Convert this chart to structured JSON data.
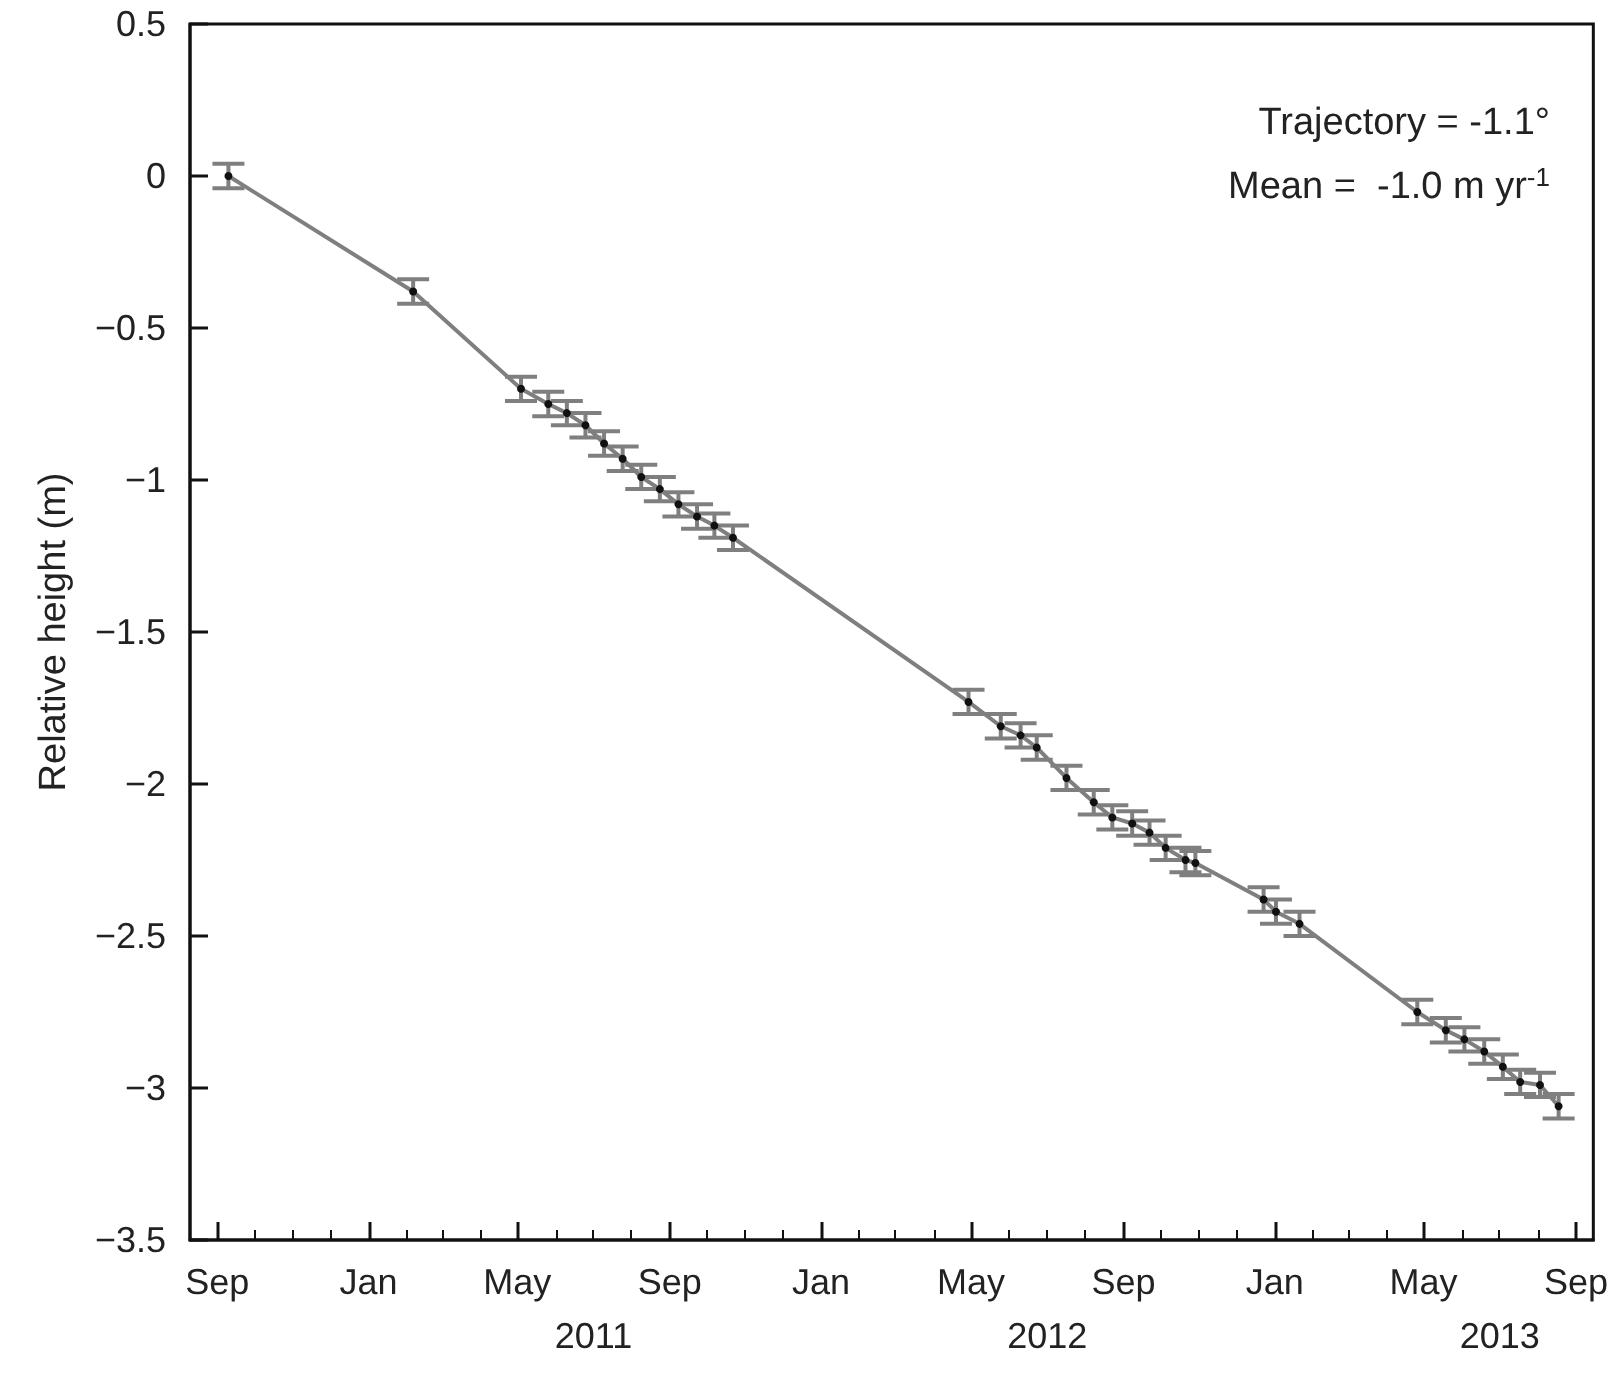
{
  "chart_data": {
    "type": "line",
    "ylabel": "Relative height (m)",
    "annotations": [
      "Trajectory = -1.1°",
      "Mean =  -1.0 m yr$^{-1}$",
      "2011",
      "2012",
      "2013"
    ],
    "x": [
      "2010-09-10",
      "2011-02-06",
      "2011-05-04",
      "2011-05-26",
      "2011-06-10",
      "2011-06-25",
      "2011-07-10",
      "2011-07-25",
      "2011-08-09",
      "2011-08-24",
      "2011-09-08",
      "2011-09-23",
      "2011-10-07",
      "2011-10-22",
      "2012-04-29",
      "2012-05-25",
      "2012-06-10",
      "2012-06-23",
      "2012-07-17",
      "2012-08-08",
      "2012-08-23",
      "2012-09-08",
      "2012-09-22",
      "2012-10-05",
      "2012-10-21",
      "2012-10-29",
      "2012-12-23",
      "2013-01-02",
      "2013-01-21",
      "2013-04-26",
      "2013-05-19",
      "2013-06-03",
      "2013-06-19",
      "2013-07-04",
      "2013-07-18",
      "2013-08-03",
      "2013-08-18"
    ],
    "series": [
      {
        "color": "#7f7f7f",
        "values": [
          0,
          -0.38,
          -0.7,
          -0.75,
          -0.78,
          -0.82,
          -0.88,
          -0.93,
          -0.99,
          -1.03,
          -1.08,
          -1.12,
          -1.15,
          -1.19,
          -1.73,
          -1.81,
          -1.84,
          -1.88,
          -1.98,
          -2.06,
          -2.11,
          -2.13,
          -2.16,
          -2.21,
          -2.25,
          -2.26,
          -2.38,
          -2.42,
          -2.46,
          -2.75,
          -2.81,
          -2.84,
          -2.88,
          -2.93,
          -2.98,
          -2.99,
          -3.06
        ],
        "errors": [
          0.04,
          0.04,
          0.04,
          0.04,
          0.04,
          0.04,
          0.04,
          0.04,
          0.04,
          0.04,
          0.04,
          0.04,
          0.04,
          0.04,
          0.04,
          0.04,
          0.04,
          0.04,
          0.04,
          0.04,
          0.04,
          0.04,
          0.04,
          0.04,
          0.04,
          0.04,
          0.04,
          0.04,
          0.04,
          0.04,
          0.04,
          0.04,
          0.04,
          0.04,
          0.04,
          0.04,
          0.04
        ]
      }
    ],
    "marker": "circle",
    "line_style": "solid",
    "grid": false,
    "legend": false,
    "xlim": [
      "2010-08-10",
      "2013-09-15"
    ],
    "xticks": [
      {
        "value": "2010-09-01",
        "label": "Sep"
      },
      {
        "value": "2010-10-01",
        "label": null
      },
      {
        "value": "2010-11-01",
        "label": null
      },
      {
        "value": "2010-12-01",
        "label": null
      },
      {
        "value": "2011-01-01",
        "label": "Jan"
      },
      {
        "value": "2011-02-01",
        "label": null
      },
      {
        "value": "2011-03-01",
        "label": null
      },
      {
        "value": "2011-04-01",
        "label": null
      },
      {
        "value": "2011-05-01",
        "label": "May"
      },
      {
        "value": "2011-06-01",
        "label": null
      },
      {
        "value": "2011-07-01",
        "label": null
      },
      {
        "value": "2011-08-01",
        "label": null
      },
      {
        "value": "2011-09-01",
        "label": "Sep"
      },
      {
        "value": "2011-10-01",
        "label": null
      },
      {
        "value": "2011-11-01",
        "label": null
      },
      {
        "value": "2011-12-01",
        "label": null
      },
      {
        "value": "2012-01-01",
        "label": "Jan"
      },
      {
        "value": "2012-02-01",
        "label": null
      },
      {
        "value": "2012-03-01",
        "label": null
      },
      {
        "value": "2012-04-01",
        "label": null
      },
      {
        "value": "2012-05-01",
        "label": "May"
      },
      {
        "value": "2012-06-01",
        "label": null
      },
      {
        "value": "2012-07-01",
        "label": null
      },
      {
        "value": "2012-08-01",
        "label": null
      },
      {
        "value": "2012-09-01",
        "label": "Sep"
      },
      {
        "value": "2012-10-01",
        "label": null
      },
      {
        "value": "2012-11-01",
        "label": null
      },
      {
        "value": "2012-12-01",
        "label": null
      },
      {
        "value": "2013-01-01",
        "label": "Jan"
      },
      {
        "value": "2013-02-01",
        "label": null
      },
      {
        "value": "2013-03-01",
        "label": null
      },
      {
        "value": "2013-04-01",
        "label": null
      },
      {
        "value": "2013-05-01",
        "label": "May"
      },
      {
        "value": "2013-06-01",
        "label": null
      },
      {
        "value": "2013-07-01",
        "label": null
      },
      {
        "value": "2013-08-01",
        "label": null
      },
      {
        "value": "2013-09-01",
        "label": "Sep"
      }
    ],
    "ylim": [
      -3.5,
      0.5
    ],
    "yticks": [
      {
        "value": -3.5,
        "label": "−3.5"
      },
      {
        "value": -3,
        "label": "−3"
      },
      {
        "value": -2.5,
        "label": "−2.5"
      },
      {
        "value": -2,
        "label": "−2"
      },
      {
        "value": -1.5,
        "label": "−1.5"
      },
      {
        "value": -1,
        "label": "−1"
      },
      {
        "value": -0.5,
        "label": "−0.5"
      },
      0,
      0.5
    ]
  }
}
